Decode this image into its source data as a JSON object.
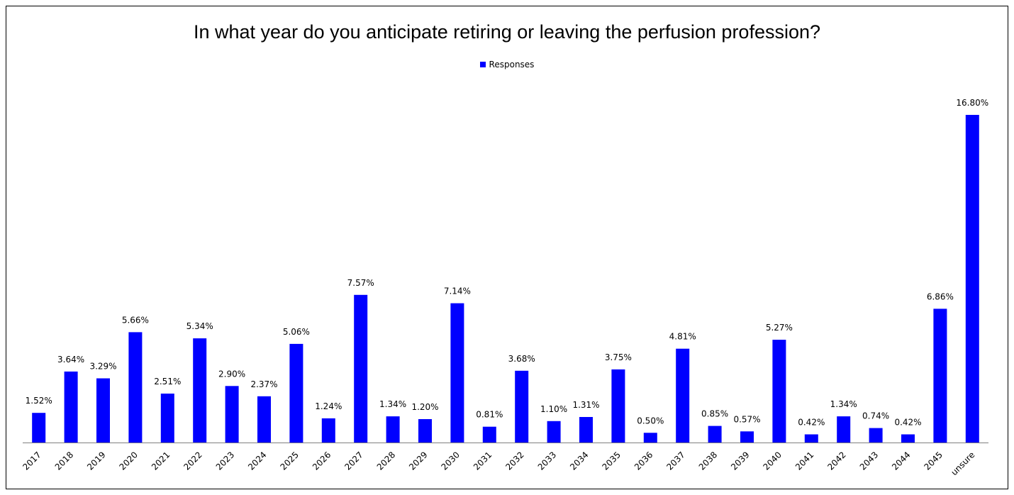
{
  "chart_data": {
    "type": "bar",
    "title": "In what year do you anticipate retiring or leaving the perfusion profession?",
    "legend": {
      "position": "top",
      "entries": [
        "Responses"
      ]
    },
    "grid": false,
    "ylim": [
      0,
      20
    ],
    "series": [
      {
        "name": "Responses",
        "color": "#0000ff",
        "values": [
          1.52,
          3.64,
          3.29,
          5.66,
          2.51,
          5.34,
          2.9,
          2.37,
          5.06,
          1.24,
          7.57,
          1.34,
          1.2,
          7.14,
          0.81,
          3.68,
          1.1,
          1.31,
          3.75,
          0.5,
          4.81,
          0.85,
          0.57,
          5.27,
          0.42,
          1.34,
          0.74,
          0.42,
          6.86,
          16.8
        ],
        "labels": [
          "1.52%",
          "3.64%",
          "3.29%",
          "5.66%",
          "2.51%",
          "5.34%",
          "2.90%",
          "2.37%",
          "5.06%",
          "1.24%",
          "7.57%",
          "1.34%",
          "1.20%",
          "7.14%",
          "0.81%",
          "3.68%",
          "1.10%",
          "1.31%",
          "3.75%",
          "0.50%",
          "4.81%",
          "0.85%",
          "0.57%",
          "5.27%",
          "0.42%",
          "1.34%",
          "0.74%",
          "0.42%",
          "6.86%",
          "16.80%"
        ]
      }
    ],
    "categories": [
      "2017",
      "2018",
      "2019",
      "2020",
      "2021",
      "2022",
      "2023",
      "2024",
      "2025",
      "2026",
      "2027",
      "2028",
      "2029",
      "2030",
      "2031",
      "2032",
      "2033",
      "2034",
      "2035",
      "2036",
      "2037",
      "2038",
      "2039",
      "2040",
      "2041",
      "2042",
      "2043",
      "2044",
      "2045",
      "unsure"
    ]
  }
}
